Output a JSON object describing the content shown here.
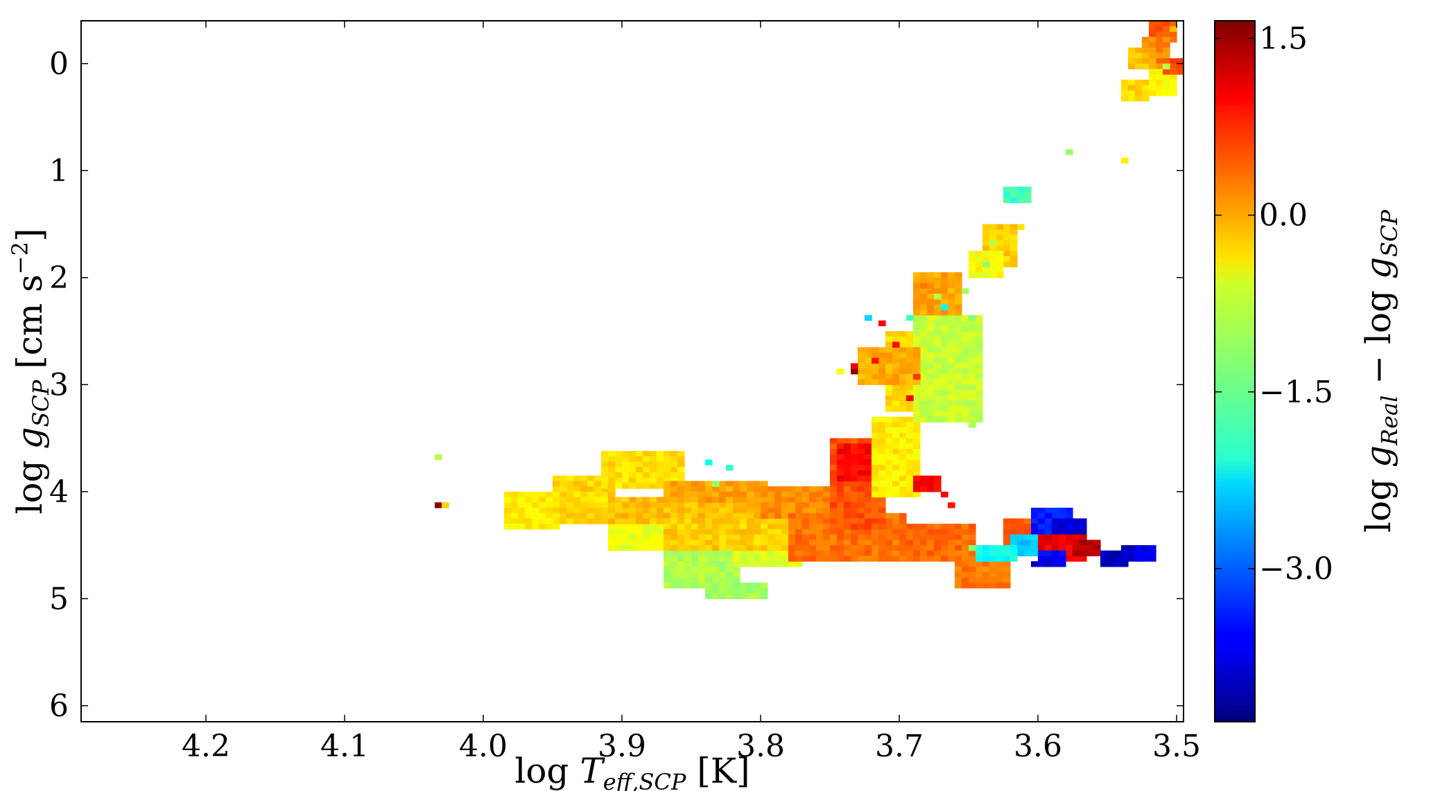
{
  "chart_data": {
    "type": "heatmap",
    "title": "",
    "xlabel": {
      "prefix": "log ",
      "var": "T",
      "sub": "eff,SCP",
      "unit": " [K]"
    },
    "ylabel": {
      "prefix": "log ",
      "var": "g",
      "sub": "SCP",
      "unit": " [cm  s",
      "unit_sup": "−2",
      "unit_end": "]"
    },
    "colorbar_label": {
      "prefix": "log ",
      "var1": "g",
      "sub1": "Real",
      "mid": " − log ",
      "var2": "g",
      "sub2": "SCP"
    },
    "x_axis": {
      "range": [
        4.29,
        3.495
      ],
      "reversed": true,
      "ticks": [
        4.2,
        4.1,
        4.0,
        3.9,
        3.8,
        3.7,
        3.6,
        3.5
      ],
      "tick_labels": [
        "4.2",
        "4.1",
        "4.0",
        "3.9",
        "3.8",
        "3.7",
        "3.6",
        "3.5"
      ]
    },
    "y_axis": {
      "range": [
        -0.4,
        6.15
      ],
      "inverted": true,
      "ticks": [
        0,
        1,
        2,
        3,
        4,
        5,
        6
      ],
      "tick_labels": [
        "0",
        "1",
        "2",
        "3",
        "4",
        "5",
        "6"
      ]
    },
    "colorbar": {
      "colormap": "jet",
      "range": [
        -4.3,
        1.65
      ],
      "ticks": [
        1.5,
        0.0,
        -1.5,
        -3.0
      ],
      "tick_labels": [
        "1.5",
        "0.0",
        "−1.5",
        "−3.0"
      ]
    },
    "cell_size": {
      "x": 0.005,
      "y": 0.05
    },
    "regions": [
      {
        "t": [
          3.985,
          3.95
        ],
        "g": [
          4.0,
          4.3
        ],
        "v": -0.5
      },
      {
        "t": [
          3.95,
          3.91
        ],
        "g": [
          3.85,
          4.25
        ],
        "v": -0.35
      },
      {
        "t": [
          3.915,
          3.86
        ],
        "g": [
          3.62,
          3.95
        ],
        "v": -0.4
      },
      {
        "t": [
          3.91,
          3.87
        ],
        "g": [
          4.3,
          4.5
        ],
        "v": -0.7
      },
      {
        "t": [
          3.87,
          3.82
        ],
        "g": [
          4.4,
          4.85
        ],
        "v": -1.05
      },
      {
        "t": [
          3.84,
          3.8
        ],
        "g": [
          4.85,
          4.95
        ],
        "v": -1.1
      },
      {
        "t": [
          3.82,
          3.775
        ],
        "g": [
          4.5,
          4.65
        ],
        "v": -0.8
      },
      {
        "t": [
          3.91,
          3.8
        ],
        "g": [
          4.05,
          4.25
        ],
        "v": -0.2
      },
      {
        "t": [
          3.87,
          3.8
        ],
        "g": [
          3.9,
          4.05
        ],
        "v": -0.05
      },
      {
        "t": [
          3.87,
          3.76
        ],
        "g": [
          4.25,
          4.5
        ],
        "v": -0.3
      },
      {
        "t": [
          3.8,
          3.74
        ],
        "g": [
          3.95,
          4.2
        ],
        "v": 0.1
      },
      {
        "t": [
          3.78,
          3.7
        ],
        "g": [
          4.2,
          4.6
        ],
        "v": 0.25
      },
      {
        "t": [
          3.7,
          3.65
        ],
        "g": [
          4.3,
          4.6
        ],
        "v": 0.3
      },
      {
        "t": [
          3.66,
          3.625
        ],
        "g": [
          4.55,
          4.88
        ],
        "v": 0.2
      },
      {
        "t": [
          3.75,
          3.715
        ],
        "g": [
          3.5,
          4.3
        ],
        "v": 0.45
      },
      {
        "t": [
          3.745,
          3.725
        ],
        "g": [
          3.55,
          3.85
        ],
        "v": 0.9
      },
      {
        "t": [
          3.72,
          3.69
        ],
        "g": [
          3.3,
          4.0
        ],
        "v": -0.5
      },
      {
        "t": [
          3.69,
          3.675
        ],
        "g": [
          3.85,
          3.95
        ],
        "v": 0.9
      },
      {
        "t": [
          3.71,
          3.66
        ],
        "g": [
          2.5,
          3.2
        ],
        "v": -0.4
      },
      {
        "t": [
          3.69,
          3.645
        ],
        "g": [
          2.35,
          3.3
        ],
        "v": -0.9
      },
      {
        "t": [
          3.73,
          3.69
        ],
        "g": [
          2.65,
          2.95
        ],
        "v": -0.1
      },
      {
        "t": [
          3.69,
          3.66
        ],
        "g": [
          1.95,
          2.3
        ],
        "v": -0.05
      },
      {
        "t": [
          3.64,
          3.62
        ],
        "g": [
          1.5,
          1.85
        ],
        "v": -0.3
      },
      {
        "t": [
          3.65,
          3.63
        ],
        "g": [
          1.75,
          1.95
        ],
        "v": -0.6
      },
      {
        "t": [
          3.625,
          3.61
        ],
        "g": [
          1.15,
          1.25
        ],
        "v": -1.7
      },
      {
        "t": [
          3.625,
          3.585
        ],
        "g": [
          4.25,
          4.55
        ],
        "v": 0.4
      },
      {
        "t": [
          3.605,
          3.58
        ],
        "g": [
          4.15,
          4.4
        ],
        "v": -3.4
      },
      {
        "t": [
          3.59,
          3.57
        ],
        "g": [
          4.25,
          4.45
        ],
        "v": -3.8
      },
      {
        "t": [
          3.62,
          3.595
        ],
        "g": [
          4.4,
          4.55
        ],
        "v": -2.4
      },
      {
        "t": [
          3.6,
          3.57
        ],
        "g": [
          4.4,
          4.6
        ],
        "v": 1.0
      },
      {
        "t": [
          3.575,
          3.56
        ],
        "g": [
          4.45,
          4.55
        ],
        "v": 1.35
      },
      {
        "t": [
          3.645,
          3.62
        ],
        "g": [
          4.5,
          4.6
        ],
        "v": -2.0
      },
      {
        "t": [
          3.555,
          3.54
        ],
        "g": [
          4.55,
          4.65
        ],
        "v": -4.0
      },
      {
        "t": [
          3.54,
          3.53
        ],
        "g": [
          4.5,
          4.6
        ],
        "v": -3.9
      },
      {
        "t": [
          3.53,
          3.52
        ],
        "g": [
          4.5,
          4.6
        ],
        "v": -3.7
      },
      {
        "t": [
          3.6,
          3.585
        ],
        "g": [
          4.55,
          4.65
        ],
        "v": -3.6
      },
      {
        "t": [
          3.52,
          3.505
        ],
        "g": [
          -0.4,
          -0.25
        ],
        "v": 0.4
      },
      {
        "t": [
          3.525,
          3.51
        ],
        "g": [
          -0.25,
          0.0
        ],
        "v": 0.15
      },
      {
        "t": [
          3.535,
          3.52
        ],
        "g": [
          -0.15,
          0.0
        ],
        "v": -0.2
      },
      {
        "t": [
          3.54,
          3.525
        ],
        "g": [
          0.15,
          0.3
        ],
        "v": -0.35
      },
      {
        "t": [
          3.52,
          3.505
        ],
        "g": [
          0.05,
          0.25
        ],
        "v": -0.6
      },
      {
        "t": [
          3.51,
          3.495
        ],
        "g": [
          -0.05,
          0.05
        ],
        "v": 0.5
      }
    ],
    "cells": [
      {
        "t": 4.035,
        "g": 4.1,
        "v": 1.6
      },
      {
        "t": 4.03,
        "g": 4.1,
        "v": -0.3
      },
      {
        "t": 4.035,
        "g": 3.65,
        "v": -1.0
      },
      {
        "t": 3.735,
        "g": 2.85,
        "v": 1.55
      },
      {
        "t": 3.735,
        "g": 2.8,
        "v": 1.0
      },
      {
        "t": 3.725,
        "g": 2.35,
        "v": -2.3
      },
      {
        "t": 3.715,
        "g": 2.4,
        "v": 0.9
      },
      {
        "t": 3.695,
        "g": 2.35,
        "v": -1.7
      },
      {
        "t": 3.67,
        "g": 2.25,
        "v": -2.1
      },
      {
        "t": 3.72,
        "g": 2.75,
        "v": 0.8
      },
      {
        "t": 3.705,
        "g": 2.6,
        "v": 0.85
      },
      {
        "t": 3.69,
        "g": 2.9,
        "v": 0.6
      },
      {
        "t": 3.695,
        "g": 3.1,
        "v": 0.95
      },
      {
        "t": 3.84,
        "g": 3.7,
        "v": -2.0
      },
      {
        "t": 3.825,
        "g": 3.75,
        "v": -1.8
      },
      {
        "t": 3.835,
        "g": 3.9,
        "v": -1.2
      },
      {
        "t": 3.67,
        "g": 4.0,
        "v": 0.9
      },
      {
        "t": 3.665,
        "g": 4.1,
        "v": 0.8
      },
      {
        "t": 3.58,
        "g": 0.8,
        "v": -1.2
      },
      {
        "t": 3.54,
        "g": 0.88,
        "v": -0.5
      },
      {
        "t": 3.615,
        "g": 1.5,
        "v": -0.4
      },
      {
        "t": 3.635,
        "g": 1.65,
        "v": -1.0
      },
      {
        "t": 3.64,
        "g": 1.85,
        "v": -1.2
      },
      {
        "t": 3.655,
        "g": 2.1,
        "v": -1.1
      },
      {
        "t": 3.675,
        "g": 2.15,
        "v": -1.0
      },
      {
        "t": 3.685,
        "g": 2.05,
        "v": 0.2
      },
      {
        "t": 3.65,
        "g": 2.35,
        "v": -1.3
      },
      {
        "t": 3.65,
        "g": 3.35,
        "v": -1.1
      },
      {
        "t": 3.745,
        "g": 2.85,
        "v": -0.6
      },
      {
        "t": 3.605,
        "g": 4.65,
        "v": -3.9
      },
      {
        "t": 3.595,
        "g": 4.65,
        "v": -3.9
      },
      {
        "t": 3.65,
        "g": 4.5,
        "v": -1.3
      },
      {
        "t": 3.505,
        "g": -0.35,
        "v": -0.2
      },
      {
        "t": 3.5,
        "g": -0.05,
        "v": 0.6
      },
      {
        "t": 3.51,
        "g": 0.0,
        "v": -1.0
      },
      {
        "t": 3.515,
        "g": 0.25,
        "v": -0.6
      },
      {
        "t": 3.53,
        "g": 0.3,
        "v": -0.3
      }
    ]
  }
}
